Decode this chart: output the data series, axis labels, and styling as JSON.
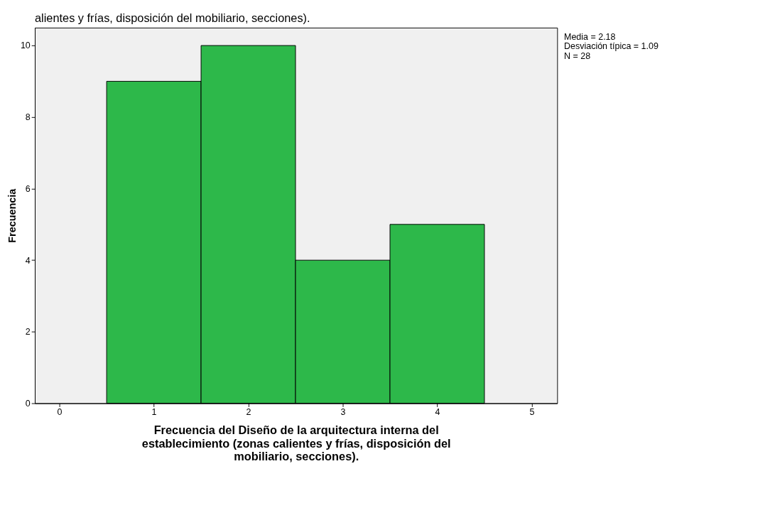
{
  "chart_data": {
    "type": "histogram",
    "title": "alientes y frías, disposición del mobiliario, secciones).",
    "xlabel": "Frecuencia del Diseño de la arquitectura interna del\nestablecimiento (zonas calientes y frías, disposición del\nmobiliario, secciones).",
    "ylabel": "Frecuencia",
    "bins": [
      0.5,
      1.5,
      2.5,
      3.5,
      4.5
    ],
    "values": [
      9,
      10,
      4,
      5
    ],
    "color": "#2db84a",
    "xlim": [
      -0.26,
      5.27
    ],
    "xticks": [
      0,
      1,
      2,
      3,
      4,
      5
    ],
    "ylim": [
      0,
      10.5
    ],
    "yticks": [
      0,
      2,
      4,
      6,
      8,
      10
    ],
    "grid": false,
    "annotations": [
      "Media = 2.18",
      "Desviación típica = 1.09",
      "N = 28"
    ]
  }
}
